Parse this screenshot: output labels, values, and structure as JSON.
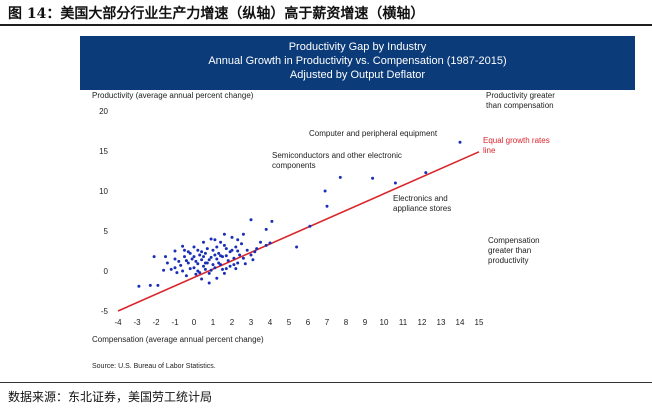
{
  "header": {
    "title": "图 14：美国大部分行业生产力增速（纵轴）高于薪资增速（横轴）"
  },
  "banner": {
    "line1": "Productivity Gap by Industry",
    "line2": "Annual Growth in Productivity vs. Compensation (1987-2015)",
    "line3": "Adjusted by Output Deflator"
  },
  "chart_data": {
    "type": "scatter",
    "title": "Productivity Gap by Industry",
    "subtitle": "Annual Growth in Productivity vs. Compensation (1987-2015); Adjusted by Output Deflator",
    "xlabel": "Compensation (average annual percent change)",
    "ylabel": "Productivity (average annual percent change)",
    "xlim": [
      -4,
      15
    ],
    "ylim": [
      -5,
      20
    ],
    "xticks": [
      "-4",
      "-3",
      "-2",
      "-1",
      "0",
      "1",
      "2",
      "3",
      "4",
      "5",
      "6",
      "7",
      "8",
      "9",
      "10",
      "11",
      "12",
      "13",
      "14",
      "15"
    ],
    "yticks": [
      "20",
      "15",
      "10",
      "5",
      "0",
      "-5"
    ],
    "grid": false,
    "reference_line": {
      "label": "Equal growth rates line",
      "x": [
        -4,
        15
      ],
      "y": [
        -5,
        14.9
      ]
    },
    "region_labels": {
      "above": "Productivity greater than compensation",
      "below": "Compensation greater than productivity"
    },
    "annotations": [
      {
        "text": "Computer and peripheral equipment"
      },
      {
        "text": "Semiconductors and other electronic components"
      },
      {
        "text": "Electronics and appliance stores"
      }
    ],
    "source": "Source: U.S. Bureau of Labor Statistics.",
    "points": [
      [
        14.0,
        16.1
      ],
      [
        12.2,
        12.3
      ],
      [
        10.6,
        11.0
      ],
      [
        9.4,
        11.6
      ],
      [
        7.7,
        11.7
      ],
      [
        6.9,
        10.0
      ],
      [
        7.0,
        8.1
      ],
      [
        6.1,
        5.6
      ],
      [
        5.4,
        3.0
      ],
      [
        4.1,
        6.2
      ],
      [
        4.0,
        3.5
      ],
      [
        3.8,
        5.2
      ],
      [
        3.0,
        6.4
      ],
      [
        2.6,
        4.6
      ],
      [
        2.3,
        3.9
      ],
      [
        2.0,
        4.2
      ],
      [
        1.6,
        4.6
      ],
      [
        1.4,
        3.6
      ],
      [
        1.1,
        3.9
      ],
      [
        0.9,
        4.0
      ],
      [
        0.5,
        3.6
      ],
      [
        0.0,
        3.0
      ],
      [
        -0.3,
        2.4
      ],
      [
        -0.5,
        2.6
      ],
      [
        -0.6,
        3.1
      ],
      [
        -1.0,
        2.5
      ],
      [
        -1.5,
        1.8
      ],
      [
        -1.0,
        1.5
      ],
      [
        -1.4,
        1.0
      ],
      [
        -1.2,
        0.2
      ],
      [
        -0.7,
        0.7
      ],
      [
        -0.4,
        1.3
      ],
      [
        -0.2,
        0.3
      ],
      [
        0.0,
        1.8
      ],
      [
        0.1,
        -0.4
      ],
      [
        0.2,
        0.9
      ],
      [
        0.3,
        2.0
      ],
      [
        0.4,
        1.4
      ],
      [
        0.5,
        0.6
      ],
      [
        0.6,
        2.2
      ],
      [
        0.7,
        1.0
      ],
      [
        0.8,
        -0.3
      ],
      [
        0.9,
        1.7
      ],
      [
        1.0,
        2.6
      ],
      [
        1.1,
        0.4
      ],
      [
        1.2,
        1.5
      ],
      [
        1.3,
        2.2
      ],
      [
        1.4,
        0.8
      ],
      [
        1.5,
        1.8
      ],
      [
        1.6,
        -0.3
      ],
      [
        1.7,
        2.8
      ],
      [
        1.8,
        1.3
      ],
      [
        1.9,
        0.6
      ],
      [
        2.0,
        2.6
      ],
      [
        2.1,
        1.6
      ],
      [
        2.2,
        3.0
      ],
      [
        2.3,
        1.0
      ],
      [
        2.4,
        2.0
      ],
      [
        2.6,
        1.6
      ],
      [
        2.8,
        2.6
      ],
      [
        3.0,
        2.0
      ],
      [
        3.1,
        1.4
      ],
      [
        3.3,
        2.8
      ],
      [
        3.5,
        3.6
      ],
      [
        -1.0,
        0.4
      ],
      [
        -0.8,
        1.2
      ],
      [
        -0.6,
        0.0
      ],
      [
        -0.5,
        1.8
      ],
      [
        -0.3,
        1.0
      ],
      [
        -0.2,
        2.2
      ],
      [
        0.0,
        0.4
      ],
      [
        0.1,
        1.2
      ],
      [
        0.2,
        2.6
      ],
      [
        0.3,
        -0.2
      ],
      [
        0.5,
        1.8
      ],
      [
        0.6,
        0.2
      ],
      [
        0.7,
        2.8
      ],
      [
        0.8,
        1.4
      ],
      [
        1.0,
        0.8
      ],
      [
        1.1,
        2.0
      ],
      [
        1.3,
        1.0
      ],
      [
        1.5,
        0.2
      ],
      [
        1.6,
        3.2
      ],
      [
        1.7,
        1.9
      ],
      [
        1.9,
        2.4
      ],
      [
        2.1,
        0.8
      ],
      [
        2.3,
        2.5
      ],
      [
        2.5,
        3.4
      ],
      [
        0.4,
        2.4
      ],
      [
        0.9,
        0.1
      ],
      [
        1.2,
        3.0
      ],
      [
        1.4,
        1.9
      ],
      [
        0.2,
        0.0
      ],
      [
        0.6,
        1.0
      ],
      [
        -0.1,
        1.5
      ],
      [
        -0.9,
        -0.2
      ],
      [
        -2.9,
        -1.9
      ],
      [
        -2.3,
        -1.8
      ],
      [
        -1.9,
        -1.8
      ],
      [
        -2.1,
        1.8
      ],
      [
        -1.6,
        0.1
      ],
      [
        -0.4,
        -0.6
      ],
      [
        0.4,
        -1.0
      ],
      [
        0.8,
        -1.5
      ],
      [
        1.2,
        -0.9
      ],
      [
        1.7,
        0.3
      ],
      [
        2.2,
        0.3
      ],
      [
        2.7,
        0.9
      ],
      [
        3.2,
        2.4
      ],
      [
        3.8,
        3.2
      ]
    ]
  },
  "footer": {
    "source": "数据来源：东北证券，美国劳工统计局"
  }
}
